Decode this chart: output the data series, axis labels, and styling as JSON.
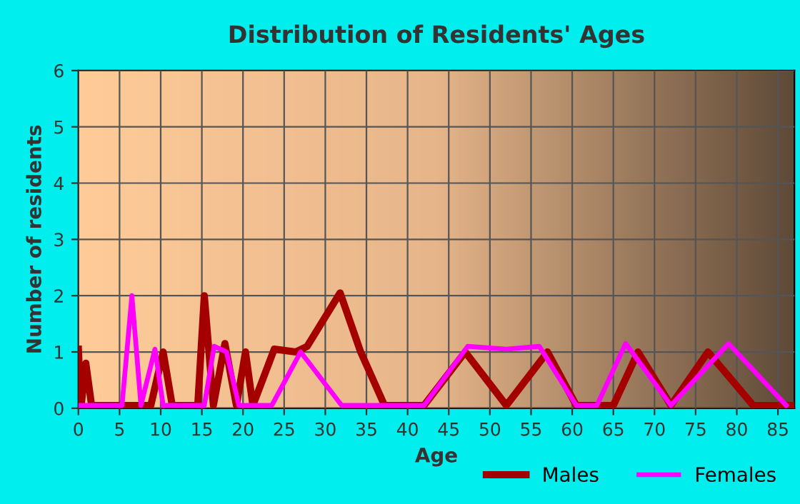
{
  "chart_data": {
    "type": "line",
    "title": "Distribution of Residents' Ages",
    "xlabel": "Age",
    "ylabel": "Number of residents",
    "xlim": [
      0,
      87
    ],
    "xticks": [
      0,
      5,
      10,
      15,
      20,
      25,
      30,
      35,
      40,
      45,
      50,
      55,
      60,
      65,
      70,
      75,
      80,
      85
    ],
    "ylim": [
      0,
      6
    ],
    "yticks": [
      0,
      1,
      2,
      3,
      4,
      5,
      6
    ],
    "grid": true,
    "legend": "bottom right",
    "marker": "none",
    "line_style": "solid",
    "series": [
      {
        "name": "Males",
        "color": "#a50000",
        "x": [
          0,
          0.3,
          0.9,
          1.6,
          8.8,
          10.3,
          11.4,
          14.5,
          15.3,
          16.4,
          17.8,
          19.2,
          20.3,
          21.2,
          23.8,
          26.4,
          27.8,
          31.8,
          34.3,
          37.2,
          42,
          47,
          52,
          57,
          60.5,
          65,
          68,
          72,
          76.5,
          82,
          87
        ],
        "values": [
          1.05,
          0,
          0.8,
          0.05,
          0.05,
          1.0,
          0.05,
          0.05,
          2.0,
          0.05,
          1.15,
          0.05,
          1.0,
          0.05,
          1.05,
          1.0,
          1.1,
          2.05,
          1.0,
          0.05,
          0.05,
          1.0,
          0.05,
          1.0,
          0.05,
          0.05,
          1.0,
          0.05,
          1.0,
          0.05,
          0.05
        ]
      },
      {
        "name": "Females",
        "color": "#ff00ff",
        "x": [
          0,
          5.3,
          6.5,
          7.6,
          9.3,
          10.3,
          15.3,
          16.5,
          18,
          19.5,
          23.5,
          27,
          32,
          42,
          47.3,
          52,
          56,
          60.5,
          63,
          66.5,
          72,
          79,
          86
        ],
        "values": [
          0.05,
          0.05,
          2.0,
          0.05,
          1.05,
          0.05,
          0.05,
          1.1,
          1.0,
          0.05,
          0.05,
          1.0,
          0.05,
          0.05,
          1.1,
          1.05,
          1.1,
          0.05,
          0.05,
          1.15,
          0.05,
          1.15,
          0.05
        ]
      }
    ]
  }
}
